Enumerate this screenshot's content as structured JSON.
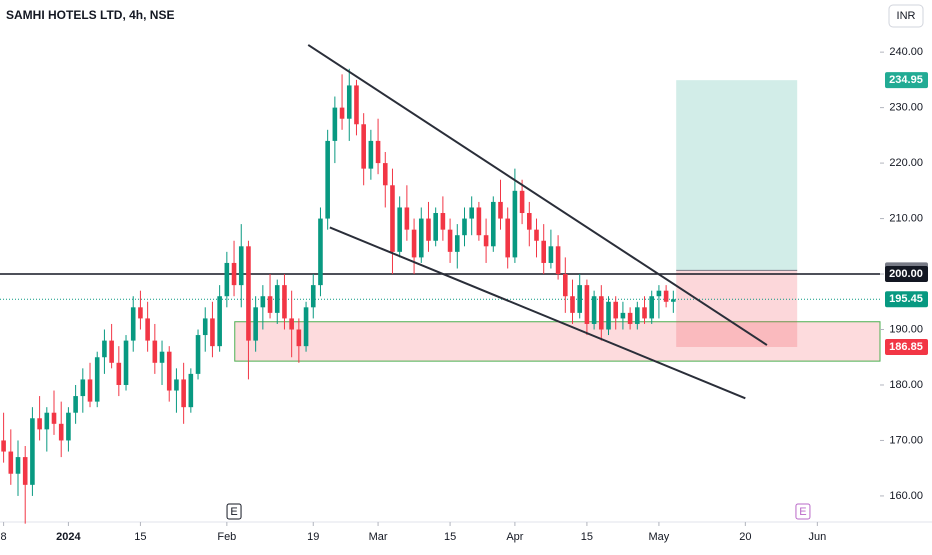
{
  "chart_data": {
    "type": "candlestick",
    "title": "SAMHI HOTELS LTD, 4h, NSE",
    "currency": "INR",
    "up_color": "#089981",
    "down_color": "#f23645",
    "ylim": [
      155.3,
      249.4
    ],
    "xlim": [
      -0.5,
      121.7
    ],
    "yticks": [
      {
        "value": 160,
        "label": "160.00"
      },
      {
        "value": 170,
        "label": "170.00"
      },
      {
        "value": 180,
        "label": "180.00"
      },
      {
        "value": 190,
        "label": "190.00"
      },
      {
        "value": 200,
        "label": "200.00"
      },
      {
        "value": 210,
        "label": "210.00"
      },
      {
        "value": 220,
        "label": "220.00"
      },
      {
        "value": 230,
        "label": "230.00"
      },
      {
        "value": 240,
        "label": "240.00"
      }
    ],
    "xticks": [
      {
        "value": 0,
        "label": "8"
      },
      {
        "value": 9,
        "label": "2024"
      },
      {
        "value": 19,
        "label": "15"
      },
      {
        "value": 31,
        "label": "Feb"
      },
      {
        "value": 43,
        "label": "19"
      },
      {
        "value": 52,
        "label": "Mar"
      },
      {
        "value": 62,
        "label": "15"
      },
      {
        "value": 71,
        "label": "Apr"
      },
      {
        "value": 81,
        "label": "15"
      },
      {
        "value": 91,
        "label": "May"
      },
      {
        "value": 103,
        "label": "20"
      },
      {
        "value": 113,
        "label": "Jun"
      }
    ],
    "ohlc": [
      [
        170,
        175,
        166,
        168
      ],
      [
        168,
        172,
        162,
        164
      ],
      [
        164,
        170,
        160,
        167
      ],
      [
        167,
        169,
        155,
        162
      ],
      [
        162,
        176,
        160,
        174
      ],
      [
        174,
        178,
        170,
        172
      ],
      [
        172,
        176,
        168,
        175
      ],
      [
        175,
        179,
        171,
        173
      ],
      [
        173,
        177,
        167,
        170
      ],
      [
        170,
        176,
        168,
        175
      ],
      [
        175,
        180,
        173,
        178
      ],
      [
        178,
        183,
        175,
        181
      ],
      [
        181,
        184,
        176,
        177
      ],
      [
        177,
        186,
        176,
        185
      ],
      [
        185,
        190,
        182,
        188
      ],
      [
        188,
        191,
        183,
        184
      ],
      [
        184,
        187,
        178,
        180
      ],
      [
        180,
        189,
        179,
        188
      ],
      [
        188,
        196,
        186,
        194
      ],
      [
        194,
        197,
        190,
        192
      ],
      [
        192,
        195,
        186,
        188
      ],
      [
        188,
        191,
        182,
        184
      ],
      [
        184,
        188,
        180,
        186
      ],
      [
        186,
        187,
        177,
        179
      ],
      [
        179,
        183,
        175,
        181
      ],
      [
        181,
        184,
        173,
        176
      ],
      [
        176,
        183,
        175,
        182
      ],
      [
        182,
        190,
        181,
        189
      ],
      [
        189,
        194,
        186,
        192
      ],
      [
        192,
        195,
        185,
        187
      ],
      [
        187,
        198,
        186,
        196
      ],
      [
        196,
        204,
        194,
        202
      ],
      [
        202,
        206,
        196,
        198
      ],
      [
        198,
        209,
        194,
        205
      ],
      [
        205,
        206,
        181,
        188
      ],
      [
        188,
        196,
        186,
        194
      ],
      [
        194,
        198,
        190,
        196
      ],
      [
        196,
        200,
        192,
        193
      ],
      [
        193,
        199,
        191,
        198
      ],
      [
        198,
        200,
        190,
        192
      ],
      [
        192,
        197,
        185,
        190
      ],
      [
        190,
        192,
        184,
        187
      ],
      [
        187,
        195,
        186,
        194
      ],
      [
        194,
        200,
        192,
        198
      ],
      [
        198,
        212,
        196,
        210
      ],
      [
        210,
        226,
        208,
        224
      ],
      [
        224,
        232,
        220,
        230
      ],
      [
        230,
        236,
        226,
        228
      ],
      [
        228,
        237,
        224,
        234
      ],
      [
        234,
        235,
        225,
        227
      ],
      [
        227,
        229,
        216,
        219
      ],
      [
        219,
        226,
        217,
        224
      ],
      [
        224,
        228,
        218,
        220
      ],
      [
        220,
        222,
        212,
        216
      ],
      [
        216,
        219,
        200,
        204
      ],
      [
        204,
        214,
        203,
        212
      ],
      [
        212,
        216,
        206,
        208
      ],
      [
        208,
        210,
        200,
        203
      ],
      [
        203,
        212,
        202,
        210
      ],
      [
        210,
        213,
        204,
        206
      ],
      [
        206,
        212,
        205,
        211
      ],
      [
        211,
        214,
        206,
        208
      ],
      [
        208,
        210,
        202,
        204
      ],
      [
        204,
        209,
        201,
        207
      ],
      [
        207,
        212,
        205,
        210
      ],
      [
        210,
        214,
        207,
        212
      ],
      [
        212,
        213,
        206,
        207
      ],
      [
        207,
        210,
        202,
        205
      ],
      [
        205,
        214,
        204,
        213
      ],
      [
        213,
        217,
        208,
        210
      ],
      [
        210,
        212,
        201,
        203
      ],
      [
        203,
        219,
        202,
        215
      ],
      [
        215,
        217,
        209,
        211
      ],
      [
        211,
        213,
        205,
        208
      ],
      [
        208,
        210,
        203,
        206
      ],
      [
        206,
        209,
        200,
        202
      ],
      [
        202,
        208,
        201,
        205
      ],
      [
        205,
        207,
        199,
        200
      ],
      [
        200,
        203,
        193,
        196
      ],
      [
        196,
        199,
        191,
        193
      ],
      [
        193,
        200,
        192,
        198
      ],
      [
        198,
        199,
        189,
        191
      ],
      [
        191,
        197,
        190,
        196
      ],
      [
        196,
        198,
        188,
        190
      ],
      [
        190,
        196,
        189,
        195
      ],
      [
        195,
        196,
        190,
        192
      ],
      [
        192,
        195,
        190,
        193
      ],
      [
        193,
        194,
        190,
        191
      ],
      [
        191,
        195,
        190,
        194
      ],
      [
        194,
        196,
        191,
        192
      ],
      [
        192,
        197,
        191,
        196
      ],
      [
        196,
        198,
        192,
        197
      ],
      [
        197,
        198,
        194,
        195
      ],
      [
        195,
        197,
        193,
        195.45
      ]
    ],
    "trendlines": [
      {
        "x": [
          42.3,
          106
        ],
        "y": [
          241.3,
          187.2
        ]
      },
      {
        "x": [
          45.3,
          103
        ],
        "y": [
          208.4,
          177.6
        ]
      }
    ],
    "level": {
      "value": 200,
      "label": "200.00"
    },
    "zone": {
      "x": [
        32.1,
        121.7
      ],
      "y": [
        191.4,
        184.3
      ]
    },
    "position": {
      "x": [
        93.4,
        110.2
      ],
      "entry": 200.65,
      "target": 234.95,
      "stop": 186.85
    },
    "last_price": 195.45,
    "earnings_markers": [
      {
        "x": 32,
        "label": "E"
      },
      {
        "x": 111,
        "label": "E"
      }
    ]
  }
}
